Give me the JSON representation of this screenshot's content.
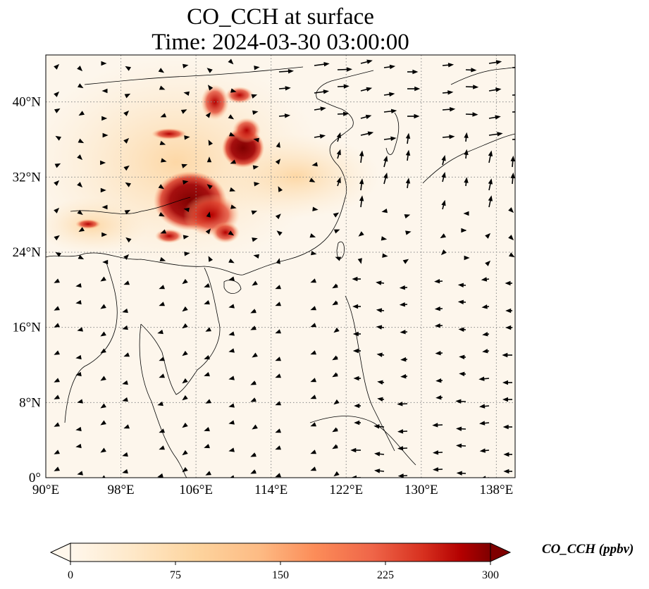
{
  "title": {
    "line1": "CO_CCH at surface",
    "line2": "Time: 2024-03-30 03:00:00"
  },
  "map": {
    "x_ticks": [
      "90°E",
      "98°E",
      "106°E",
      "114°E",
      "122°E",
      "130°E",
      "138°E"
    ],
    "y_ticks": [
      "40°N",
      "32°N",
      "24°N",
      "16°N",
      "8°N",
      "0°"
    ],
    "lon_values": [
      90,
      98,
      106,
      114,
      122,
      130,
      138
    ],
    "lat_values": [
      40,
      32,
      24,
      16,
      8,
      0
    ],
    "extent": {
      "lon": [
        90,
        140
      ],
      "lat": [
        0,
        45
      ]
    },
    "gridlines": "dotted",
    "ocean_color": "#fdf6ec"
  },
  "colorbar": {
    "label": "CO_CCH (ppbv)",
    "ticks": [
      "0",
      "75",
      "150",
      "225",
      "300"
    ],
    "range": [
      0,
      300
    ],
    "extend": "both",
    "colormap": [
      "#fff5eb",
      "#fee6ce",
      "#fdd0a2",
      "#fdae6b",
      "#fd8d3c",
      "#f16913",
      "#d94801",
      "#a63603",
      "#7f2704"
    ]
  }
}
